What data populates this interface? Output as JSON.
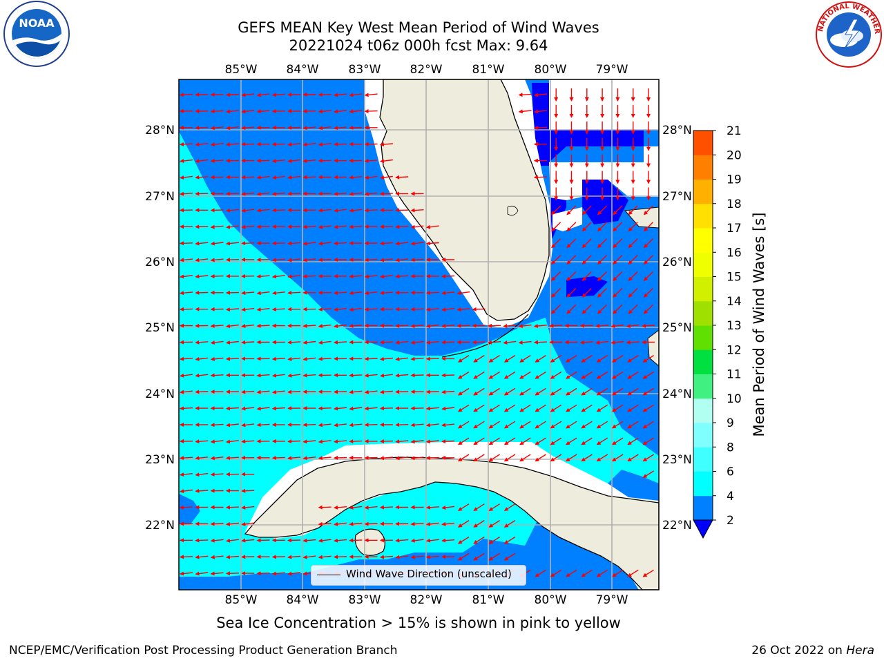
{
  "title": {
    "line1": "GEFS MEAN Key West Mean Period of Wind Waves",
    "line2": "20221024 t06z 000h fcst   Max: 9.64"
  },
  "map": {
    "lon_labels": [
      "85°W",
      "84°W",
      "83°W",
      "82°W",
      "81°W",
      "80°W",
      "79°W"
    ],
    "lat_labels": [
      "28°N",
      "27°N",
      "26°N",
      "25°N",
      "24°N",
      "23°N",
      "22°N"
    ],
    "land_color": "#eeecdc",
    "shallow_color": "#00ffff",
    "deep_color": "#0080ff",
    "arrow_color": "#ff0000",
    "legend_label": "Wind Wave Direction (unscaled)"
  },
  "colorbar": {
    "label": "Mean Period of Wind Waves [s]",
    "ticks": [
      "2",
      "4",
      "6",
      "8",
      "9",
      "10",
      "11",
      "12",
      "13",
      "14",
      "15",
      "16",
      "17",
      "18",
      "19",
      "20",
      "21"
    ],
    "colors": [
      "#0080ff",
      "#00ffff",
      "#40ffff",
      "#80ffff",
      "#b0fff0",
      "#40f080",
      "#00e040",
      "#60e000",
      "#a0e000",
      "#d0f000",
      "#f0ff00",
      "#ffff00",
      "#ffe000",
      "#ffb000",
      "#ff8000",
      "#ff5000",
      "#ff2000",
      "#ff0000"
    ],
    "extend_color": "#0000ff"
  },
  "caption": "Sea Ice Concentration > 15% is shown in pink to yellow",
  "footer": {
    "left": "NCEP/EMC/Verification Post Processing Product Generation Branch",
    "right_date": "26 Oct 2022 on ",
    "right_host": "Hera"
  },
  "logos": {
    "noaa": "NOAA",
    "nws": "NATIONAL WEATHER SERVICE"
  }
}
